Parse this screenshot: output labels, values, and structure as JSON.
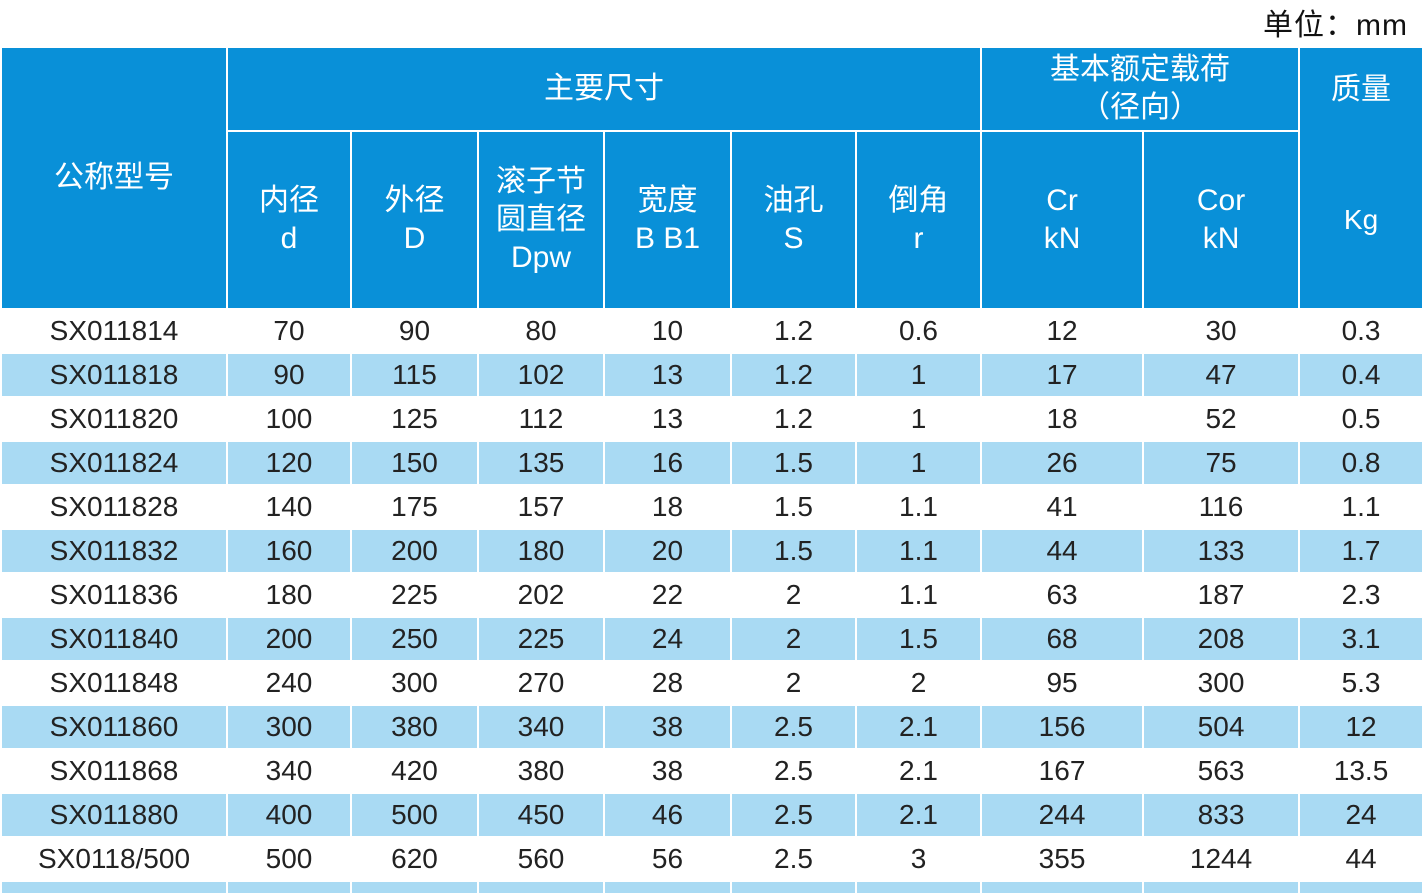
{
  "unit_label": "单位：mm",
  "colors": {
    "header_blue": "#0990d8",
    "row_alt_blue": "#a9daf3",
    "row_white": "#ffffff",
    "header_text": "#ffffff",
    "data_text": "#222222"
  },
  "table": {
    "group_headers": {
      "model": "公称型号",
      "main_dimensions": "主要尺寸",
      "basic_load_line1": "基本额定载荷",
      "basic_load_line2": "（径向）",
      "mass": "质量",
      "mass_unit": "Kg"
    },
    "sub_headers": [
      [
        "内径",
        "d"
      ],
      [
        "外径",
        "D"
      ],
      [
        "滚子节",
        "圆直径",
        "Dpw"
      ],
      [
        "宽度",
        "B B1"
      ],
      [
        "油孔",
        "S"
      ],
      [
        "倒角",
        "r"
      ],
      [
        "Cr",
        "kN"
      ],
      [
        "Cor",
        "kN"
      ]
    ],
    "rows": [
      [
        "SX011814",
        "70",
        "90",
        "80",
        "10",
        "1.2",
        "0.6",
        "12",
        "30",
        "0.3"
      ],
      [
        "SX011818",
        "90",
        "115",
        "102",
        "13",
        "1.2",
        "1",
        "17",
        "47",
        "0.4"
      ],
      [
        "SX011820",
        "100",
        "125",
        "112",
        "13",
        "1.2",
        "1",
        "18",
        "52",
        "0.5"
      ],
      [
        "SX011824",
        "120",
        "150",
        "135",
        "16",
        "1.5",
        "1",
        "26",
        "75",
        "0.8"
      ],
      [
        "SX011828",
        "140",
        "175",
        "157",
        "18",
        "1.5",
        "1.1",
        "41",
        "116",
        "1.1"
      ],
      [
        "SX011832",
        "160",
        "200",
        "180",
        "20",
        "1.5",
        "1.1",
        "44",
        "133",
        "1.7"
      ],
      [
        "SX011836",
        "180",
        "225",
        "202",
        "22",
        "2",
        "1.1",
        "63",
        "187",
        "2.3"
      ],
      [
        "SX011840",
        "200",
        "250",
        "225",
        "24",
        "2",
        "1.5",
        "68",
        "208",
        "3.1"
      ],
      [
        "SX011848",
        "240",
        "300",
        "270",
        "28",
        "2",
        "2",
        "95",
        "300",
        "5.3"
      ],
      [
        "SX011860",
        "300",
        "380",
        "340",
        "38",
        "2.5",
        "2.1",
        "156",
        "504",
        "12"
      ],
      [
        "SX011868",
        "340",
        "420",
        "380",
        "38",
        "2.5",
        "2.1",
        "167",
        "563",
        "13.5"
      ],
      [
        "SX011880",
        "400",
        "500",
        "450",
        "46",
        "2.5",
        "2.1",
        "244",
        "833",
        "24"
      ],
      [
        "SX0118/500",
        "500",
        "620",
        "560",
        "56",
        "2.5",
        "3",
        "355",
        "1244",
        "44"
      ]
    ]
  }
}
